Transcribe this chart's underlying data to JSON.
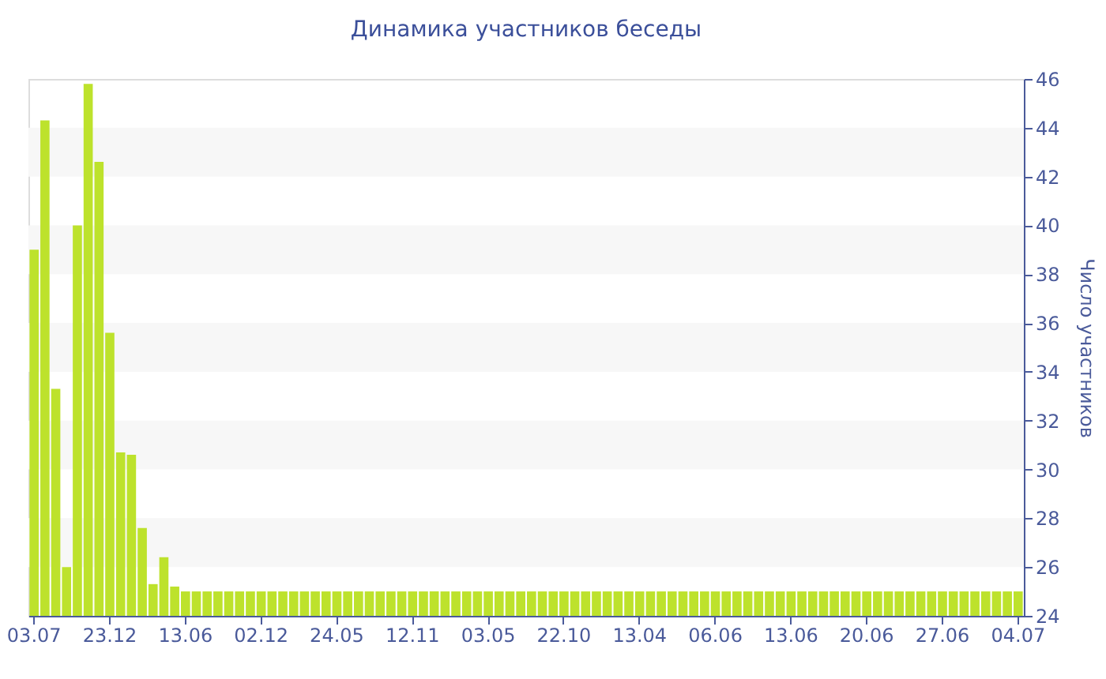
{
  "chart_data": {
    "type": "bar",
    "title": "Динамика участников беседы",
    "ylabel": "Число участников",
    "categories": [
      "03.07",
      null,
      null,
      null,
      null,
      null,
      null,
      "23.12",
      null,
      null,
      null,
      null,
      null,
      null,
      "13.06",
      null,
      null,
      null,
      null,
      null,
      null,
      "02.12",
      null,
      null,
      null,
      null,
      null,
      null,
      "24.05",
      null,
      null,
      null,
      null,
      null,
      null,
      "12.11",
      null,
      null,
      null,
      null,
      null,
      null,
      "03.05",
      null,
      null,
      null,
      null,
      null,
      null,
      "22.10",
      null,
      null,
      null,
      null,
      null,
      null,
      "13.04",
      null,
      null,
      null,
      null,
      null,
      null,
      "06.06",
      null,
      null,
      null,
      null,
      null,
      null,
      "13.06",
      null,
      null,
      null,
      null,
      null,
      null,
      "20.06",
      null,
      null,
      null,
      null,
      null,
      null,
      "27.06",
      null,
      null,
      null,
      null,
      null,
      null,
      "04.07"
    ],
    "values": [
      39.0,
      44.3,
      33.3,
      26.0,
      40.0,
      45.8,
      42.6,
      35.6,
      30.7,
      30.6,
      27.6,
      25.3,
      26.4,
      25.2,
      25,
      25,
      25,
      25,
      25,
      25,
      25,
      25,
      25,
      25,
      25,
      25,
      25,
      25,
      25,
      25,
      25,
      25,
      25,
      25,
      25,
      25,
      25,
      25,
      25,
      25,
      25,
      25,
      25,
      25,
      25,
      25,
      25,
      25,
      25,
      25,
      25,
      25,
      25,
      25,
      25,
      25,
      25,
      25,
      25,
      25,
      25,
      25,
      25,
      25,
      25,
      25,
      25,
      25,
      25,
      25,
      25,
      25,
      25,
      25,
      25,
      25,
      25,
      25,
      25,
      25,
      25,
      25,
      25,
      25,
      25,
      25,
      25,
      25,
      25,
      25,
      25,
      25
    ],
    "color": "#bde22c",
    "ylim": [
      24,
      46
    ],
    "yticks": [
      24,
      26,
      28,
      30,
      32,
      34,
      36,
      38,
      40,
      42,
      44,
      46
    ],
    "bands": [
      {
        "axis": "y",
        "from": 26,
        "to": 28,
        "color": "#f7f7f7"
      },
      {
        "axis": "y",
        "from": 30,
        "to": 32,
        "color": "#f7f7f7"
      },
      {
        "axis": "y",
        "from": 34,
        "to": 36,
        "color": "#f7f7f7"
      },
      {
        "axis": "y",
        "from": 38,
        "to": 40,
        "color": "#f7f7f7"
      },
      {
        "axis": "y",
        "from": 42,
        "to": 44,
        "color": "#f7f7f7"
      }
    ]
  }
}
